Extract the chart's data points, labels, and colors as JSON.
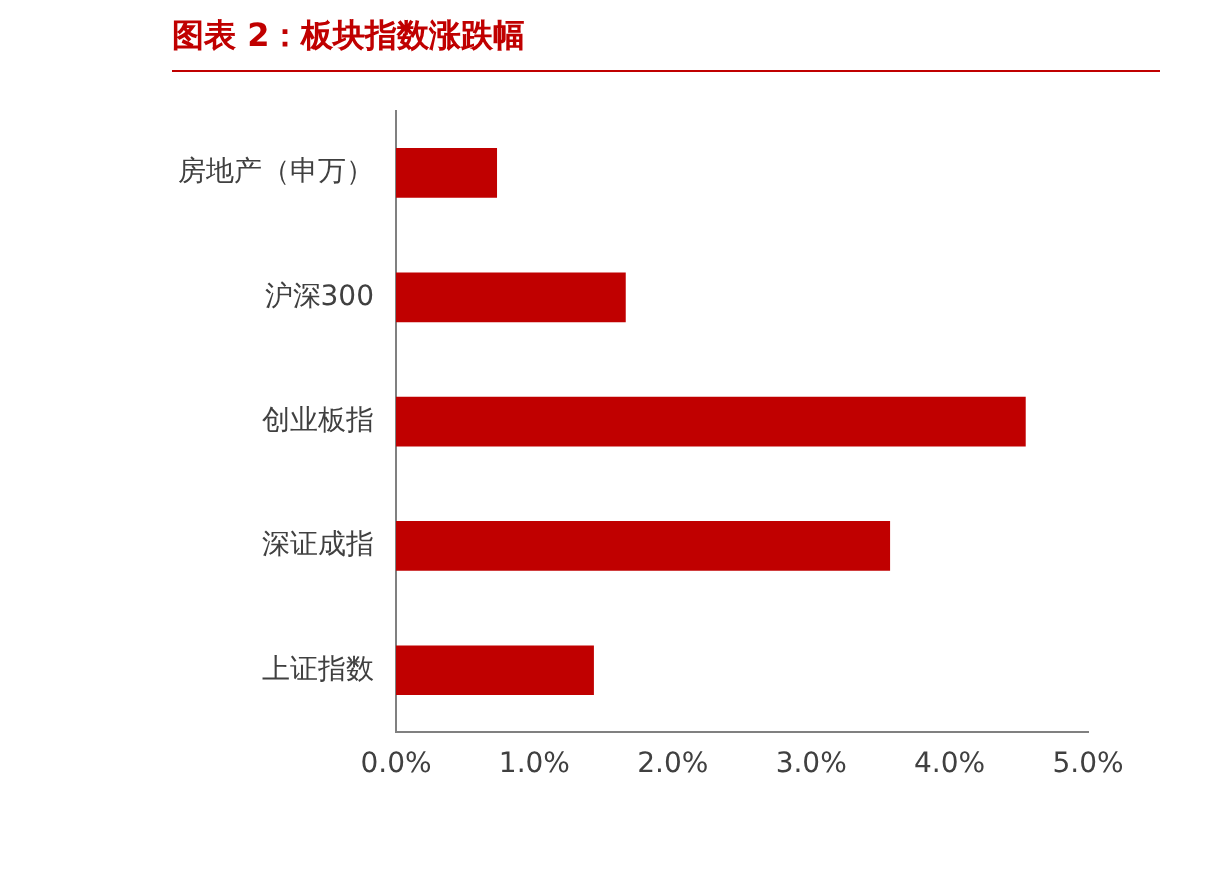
{
  "chart_data": {
    "type": "bar",
    "title": "图表 2：板块指数涨跌幅",
    "orientation": "horizontal",
    "categories": [
      "房地产（申万）",
      "沪深300",
      "创业板指",
      "深证成指",
      "上证指数"
    ],
    "values": [
      0.73,
      1.66,
      4.55,
      3.57,
      1.43
    ],
    "color": "#c00000",
    "xlim": [
      0,
      5
    ],
    "xticks": [
      {
        "value": 0,
        "label": "0.0%"
      },
      {
        "value": 1,
        "label": "1.0%"
      },
      {
        "value": 2,
        "label": "2.0%"
      },
      {
        "value": 3,
        "label": "3.0%"
      },
      {
        "value": 4,
        "label": "4.0%"
      },
      {
        "value": 5,
        "label": "5.0%"
      }
    ],
    "grid": false,
    "legend": false
  }
}
